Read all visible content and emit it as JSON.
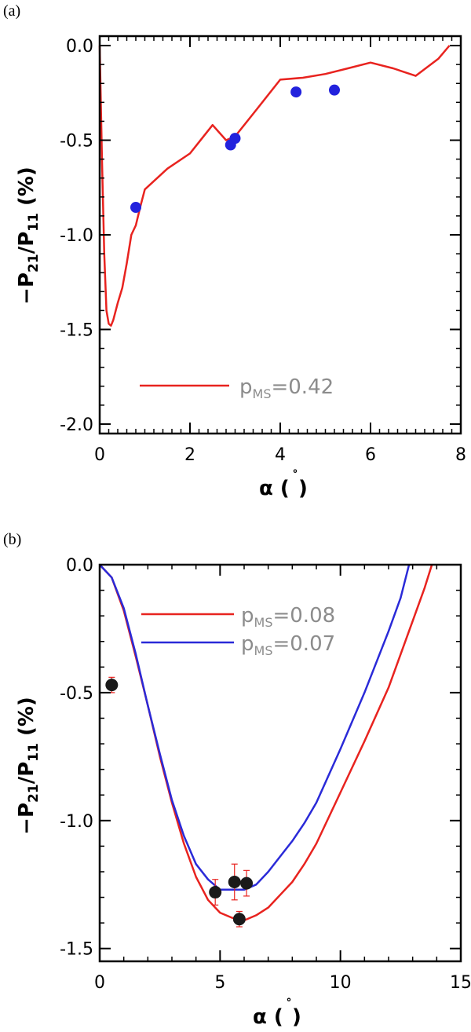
{
  "chart_data": [
    {
      "panel_label": "(a)",
      "type": "line",
      "xlabel": "α (˚)",
      "ylabel": "−P₂₁/P₁₁ (%)",
      "xlim": [
        0,
        8
      ],
      "ylim": [
        -2.05,
        0.05
      ],
      "xticks": [
        0,
        2,
        4,
        6,
        8
      ],
      "xtick_labels": [
        "0",
        "2",
        "4",
        "6",
        "8"
      ],
      "yticks": [
        0.0,
        -0.5,
        -1.0,
        -1.5,
        -2.0
      ],
      "ytick_labels": [
        "0.0",
        "-0.5",
        "-1.0",
        "-1.5",
        "-2.0"
      ],
      "legend_position": "bottom-center",
      "series": [
        {
          "name": "p_MS=0.42",
          "legend_main": "p",
          "legend_sub": "MS",
          "legend_value": "=0.42",
          "color": "#e8231f",
          "x": [
            0.0,
            0.05,
            0.1,
            0.15,
            0.2,
            0.25,
            0.3,
            0.4,
            0.5,
            0.6,
            0.7,
            0.8,
            0.85,
            0.9,
            1.0,
            1.5,
            2.0,
            2.5,
            2.8,
            3.0,
            3.5,
            4.0,
            4.5,
            5.0,
            5.5,
            6.0,
            6.5,
            7.0,
            7.5,
            7.75
          ],
          "y": [
            0.0,
            -0.6,
            -1.1,
            -1.4,
            -1.47,
            -1.48,
            -1.45,
            -1.36,
            -1.28,
            -1.15,
            -1.0,
            -0.95,
            -0.9,
            -0.85,
            -0.76,
            -0.65,
            -0.57,
            -0.42,
            -0.5,
            -0.48,
            -0.33,
            -0.18,
            -0.17,
            -0.15,
            -0.12,
            -0.09,
            -0.12,
            -0.16,
            -0.07,
            0.0
          ]
        }
      ],
      "points": {
        "color": "#2222dd",
        "x": [
          0.8,
          2.9,
          3.0,
          4.35,
          5.2
        ],
        "y": [
          -0.855,
          -0.525,
          -0.49,
          -0.245,
          -0.235
        ]
      }
    },
    {
      "panel_label": "(b)",
      "type": "line",
      "xlabel": "α (˚)",
      "ylabel": "−P₂₁/P₁₁ (%)",
      "xlim": [
        0,
        15
      ],
      "ylim": [
        -1.55,
        0.0
      ],
      "xticks": [
        0,
        5,
        10,
        15
      ],
      "xtick_labels": [
        "0",
        "5",
        "10",
        "15"
      ],
      "yticks": [
        0.0,
        -0.5,
        -1.0,
        -1.5
      ],
      "ytick_labels": [
        "0.0",
        "-0.5",
        "-1.0",
        "-1.5"
      ],
      "legend_position": "top-center",
      "series": [
        {
          "name": "p_MS=0.08",
          "legend_main": "p",
          "legend_sub": "MS",
          "legend_value": "=0.08",
          "color": "#e8231f",
          "x": [
            0.0,
            0.5,
            1.0,
            1.5,
            2.0,
            2.5,
            3.0,
            3.5,
            4.0,
            4.5,
            5.0,
            5.5,
            6.0,
            6.5,
            7.0,
            7.5,
            8.0,
            8.5,
            9.0,
            10.0,
            11.0,
            12.0,
            13.0,
            13.5,
            13.8
          ],
          "y": [
            0.0,
            -0.05,
            -0.18,
            -0.36,
            -0.55,
            -0.75,
            -0.93,
            -1.09,
            -1.22,
            -1.31,
            -1.36,
            -1.38,
            -1.39,
            -1.37,
            -1.34,
            -1.29,
            -1.24,
            -1.17,
            -1.09,
            -0.89,
            -0.69,
            -0.48,
            -0.22,
            -0.09,
            0.0
          ]
        },
        {
          "name": "p_MS=0.07",
          "legend_main": "p",
          "legend_sub": "MS",
          "legend_value": "=0.07",
          "color": "#2a2ad8",
          "x": [
            0.0,
            0.5,
            1.0,
            1.5,
            2.0,
            2.5,
            3.0,
            3.5,
            4.0,
            4.5,
            5.0,
            5.5,
            6.0,
            6.5,
            7.0,
            7.5,
            8.0,
            8.5,
            9.0,
            10.0,
            11.0,
            12.0,
            12.5,
            12.85
          ],
          "y": [
            0.0,
            -0.05,
            -0.17,
            -0.35,
            -0.55,
            -0.74,
            -0.92,
            -1.06,
            -1.17,
            -1.23,
            -1.27,
            -1.27,
            -1.27,
            -1.25,
            -1.2,
            -1.14,
            -1.08,
            -1.01,
            -0.93,
            -0.72,
            -0.5,
            -0.26,
            -0.13,
            0.0
          ]
        }
      ],
      "points": {
        "color": "#1a1a1a",
        "error_color": "#e8231f",
        "x": [
          0.5,
          4.8,
          5.6,
          5.8,
          6.1
        ],
        "y": [
          -0.47,
          -1.28,
          -1.24,
          -1.385,
          -1.245
        ],
        "err": [
          0.03,
          0.05,
          0.07,
          0.03,
          0.05
        ]
      }
    }
  ]
}
